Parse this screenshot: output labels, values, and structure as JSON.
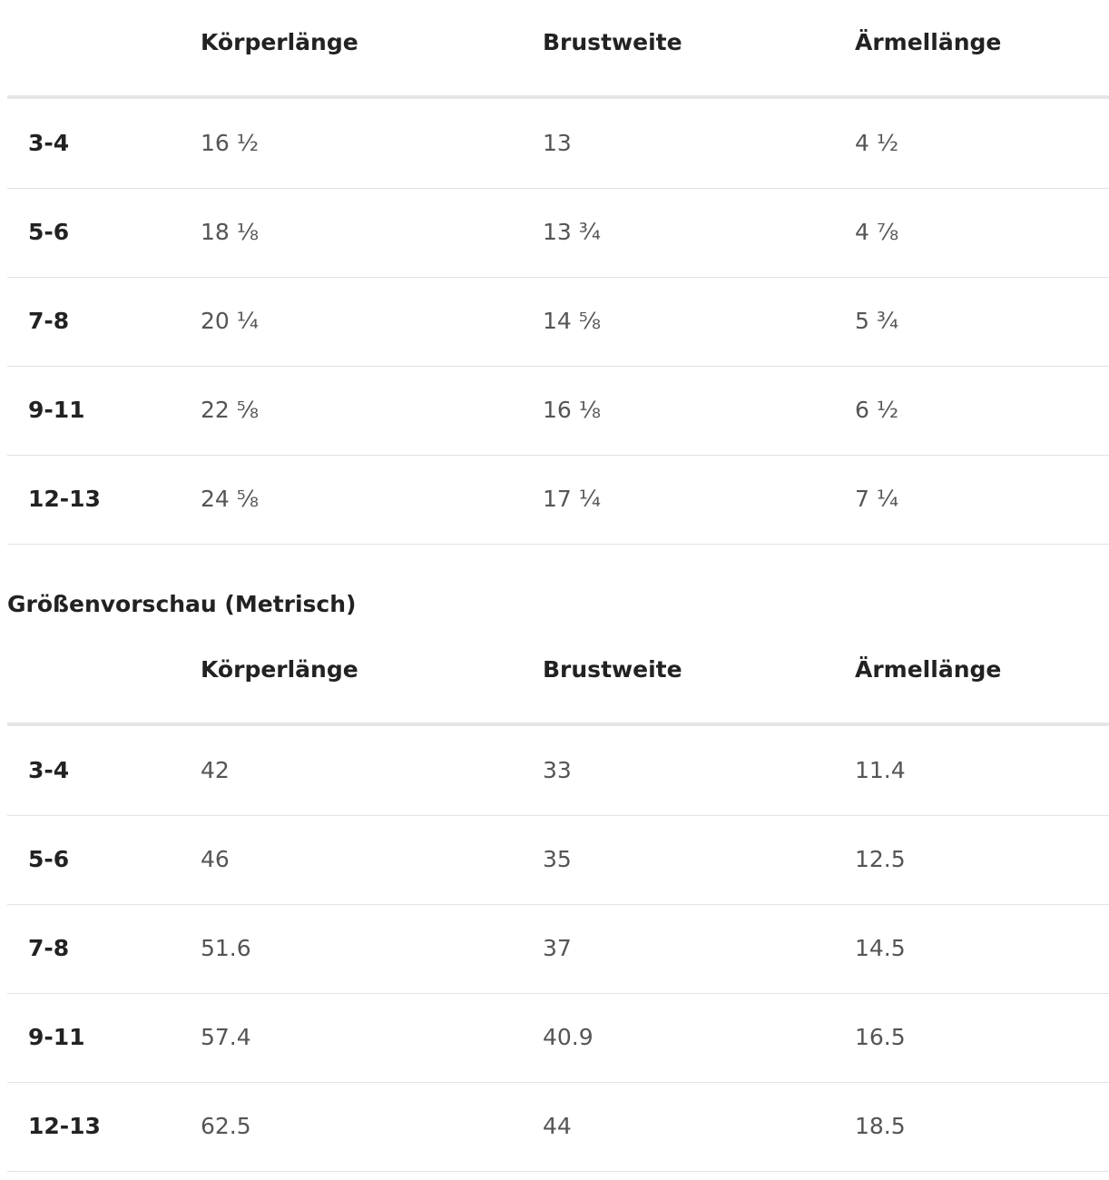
{
  "tables": [
    {
      "columns": [
        "Körperlänge",
        "Brustweite",
        "Ärmellänge"
      ],
      "rows": [
        {
          "label": "3-4",
          "cells": [
            "16 ½",
            "13",
            "4 ½"
          ]
        },
        {
          "label": "5-6",
          "cells": [
            "18 ⅛",
            "13 ¾",
            "4 ⅞"
          ]
        },
        {
          "label": "7-8",
          "cells": [
            "20 ¼",
            "14 ⅝",
            "5 ¾"
          ]
        },
        {
          "label": "9-11",
          "cells": [
            "22 ⅝",
            "16 ⅛",
            "6 ½"
          ]
        },
        {
          "label": "12-13",
          "cells": [
            "24 ⅝",
            "17 ¼",
            "7 ¼"
          ]
        }
      ]
    },
    {
      "title": "Größenvorschau (Metrisch)",
      "columns": [
        "Körperlänge",
        "Brustweite",
        "Ärmellänge"
      ],
      "rows": [
        {
          "label": "3-4",
          "cells": [
            "42",
            "33",
            "11.4"
          ]
        },
        {
          "label": "5-6",
          "cells": [
            "46",
            "35",
            "12.5"
          ]
        },
        {
          "label": "7-8",
          "cells": [
            "51.6",
            "37",
            "14.5"
          ]
        },
        {
          "label": "9-11",
          "cells": [
            "57.4",
            "40.9",
            "16.5"
          ]
        },
        {
          "label": "12-13",
          "cells": [
            "62.5",
            "44",
            "18.5"
          ]
        }
      ]
    }
  ]
}
